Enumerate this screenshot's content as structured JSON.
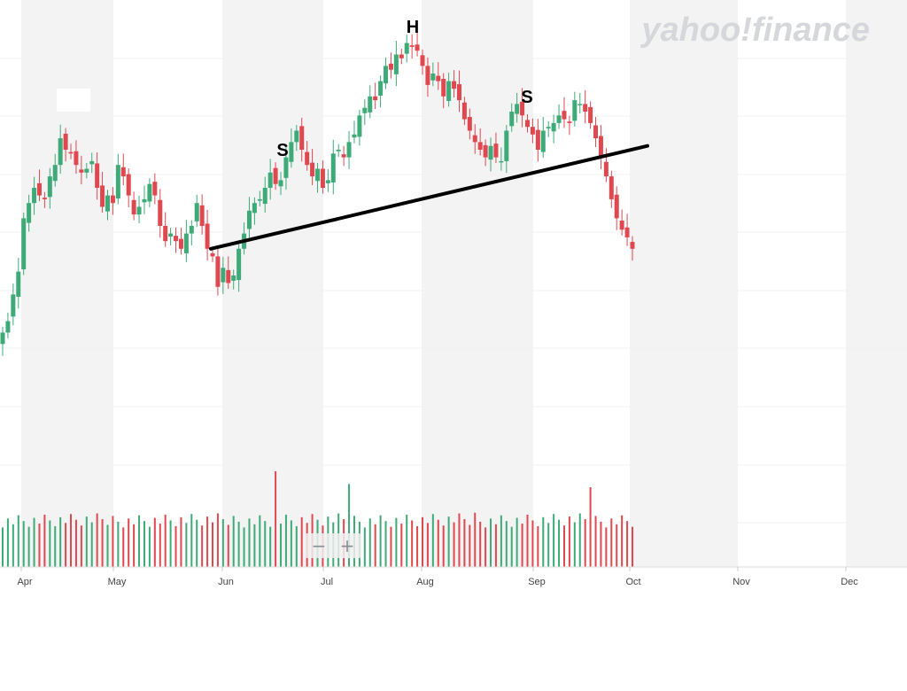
{
  "watermark": "yahoo!finance",
  "zoom": {
    "minus_label": "−",
    "plus_label": "+"
  },
  "annotations": [
    {
      "label": "S",
      "role": "left-shoulder"
    },
    {
      "label": "H",
      "role": "head"
    },
    {
      "label": "S",
      "role": "right-shoulder"
    }
  ],
  "colors": {
    "up": "#3daa78",
    "down": "#e0484f",
    "grid": "#f0f0f0",
    "band": "#f3f3f4",
    "axis_text": "#444444",
    "neckline": "#000000"
  },
  "chart_data": {
    "type": "candlestick",
    "title": "",
    "xlabel": "",
    "ylabel": "",
    "grid": true,
    "x_ticks": [
      "Apr",
      "May",
      "Jun",
      "Jul",
      "Aug",
      "Sep",
      "Oct",
      "Nov",
      "Dec"
    ],
    "price_range": [
      0,
      100
    ],
    "volume_range": [
      0,
      100
    ],
    "neckline": {
      "from": {
        "date": "2021-05-28",
        "price": 44
      },
      "to": {
        "date": "2021-10-01",
        "price": 71
      }
    },
    "closes": [
      22,
      25,
      32,
      38,
      52,
      56,
      60,
      58,
      57,
      63,
      66,
      73,
      70,
      69,
      66,
      64,
      65,
      67,
      60,
      55,
      58,
      56,
      66,
      63,
      58,
      53,
      55,
      57,
      61,
      58,
      50,
      46,
      48,
      46,
      44,
      48,
      50,
      56,
      50,
      44,
      42,
      34,
      39,
      35,
      37,
      44,
      48,
      54,
      56,
      57,
      60,
      64,
      61,
      62,
      68,
      72,
      75,
      70,
      66,
      63,
      65,
      60,
      62,
      69,
      70,
      68,
      72,
      74,
      79,
      81,
      84,
      83,
      88,
      92,
      91,
      95,
      94,
      98,
      97,
      96,
      92,
      87,
      90,
      88,
      84,
      88,
      86,
      83,
      78,
      75,
      72,
      70,
      68,
      71,
      68,
      67,
      75,
      80,
      82,
      79,
      76,
      74,
      70,
      75,
      76,
      77,
      79,
      78,
      77,
      83,
      82,
      80,
      77,
      73,
      68,
      63,
      57,
      52,
      49,
      47,
      44
    ]
  }
}
